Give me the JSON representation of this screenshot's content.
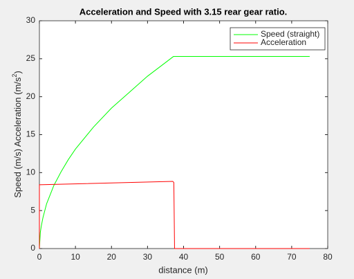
{
  "chart_data": {
    "type": "line",
    "title": "Acceleration and Speed  with 3.15 rear gear ratio.",
    "xlabel": "distance (m)",
    "ylabel": [
      "Speed (m/s) Acceleration (m/s",
      "2",
      ")"
    ],
    "series": [
      {
        "name": "Speed (straight)",
        "color": "#00ff00",
        "x": [
          0,
          0.25,
          0.5,
          1,
          2,
          4,
          6,
          8,
          10,
          15,
          20,
          25,
          30,
          35,
          37.2,
          75
        ],
        "values": [
          0,
          2.1,
          2.9,
          4.1,
          5.9,
          8.3,
          10.1,
          11.7,
          13.1,
          16.0,
          18.5,
          20.6,
          22.7,
          24.5,
          25.3,
          25.3
        ]
      },
      {
        "name": "Acceleration",
        "color": "#ff0000",
        "x": [
          0,
          0,
          37,
          37.3,
          37.5,
          75
        ],
        "values": [
          0,
          8.4,
          8.85,
          8.7,
          0,
          0
        ]
      }
    ],
    "xlim": [
      0,
      80
    ],
    "xticks": [
      0,
      10,
      20,
      30,
      40,
      50,
      60,
      70,
      80
    ],
    "ylim": [
      0,
      30
    ],
    "yticks": [
      0,
      5,
      10,
      15,
      20,
      25,
      30
    ],
    "legend": "top-right"
  }
}
